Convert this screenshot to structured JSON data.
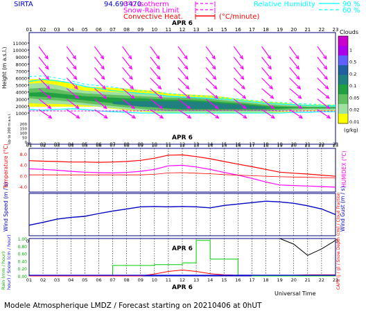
{
  "header": {
    "site": "SIRTA",
    "code": "94.693470",
    "legend_left": [
      {
        "label": "0°C isotherm",
        "color": "#ff00ff"
      },
      {
        "label": "Snow-Rain Limit",
        "color": "#ff00ff"
      },
      {
        "label": "Convective Heat.",
        "color": "#ff0000"
      }
    ],
    "heat_unit": "(°C/minute)",
    "legend_right": {
      "label": "Relative Humidity",
      "v1": "90 %",
      "v2": "60 %",
      "color": "#00ffff"
    }
  },
  "hours": [
    "01",
    "02",
    "03",
    "04",
    "05",
    "06",
    "07",
    "08",
    "09",
    "10",
    "11",
    "12",
    "13",
    "14",
    "15",
    "16",
    "17",
    "18",
    "19",
    "20",
    "21",
    "22",
    "23"
  ],
  "date_label": "APR  6",
  "colors": {
    "temp": "#ff0000",
    "humidex": "#ff00ff",
    "wind": "#0000c0",
    "rain": "#00cc00",
    "capc": "#ff0000",
    "snow": "#0000ff",
    "navy": "#000080",
    "grid": "#000080"
  },
  "chart_data": [
    {
      "type": "heatmap",
      "title": "Clouds",
      "ylabel": "Height (m a.s.l.)",
      "y_ticks": [
        "11000",
        "10000",
        "9000",
        "8000",
        "7000",
        "6000",
        "5000",
        "4000",
        "3000",
        "2000",
        "1000",
        "200",
        "150",
        "100",
        "50",
        "0"
      ],
      "sub_label": "Up to 200 m a.s.l.",
      "colorbar": {
        "unit": "(g/kg)",
        "labels": [
          "1",
          "0.5",
          "0.2",
          "0.1",
          "0.05",
          "0.02",
          "0.01"
        ],
        "colors": [
          "#cc00cc",
          "#aa00ee",
          "#6060ff",
          "#2060a0",
          "#208080",
          "#20a040",
          "#60c060",
          "#a0e0a0",
          "#ffff00"
        ]
      },
      "cloud_layers": [
        {
          "color": "#ffff00",
          "top": [
            5800,
            5900,
            5700,
            5200,
            4700,
            4700,
            4600,
            4500,
            4300,
            4200,
            3800,
            3700,
            3600,
            3500,
            3300,
            3000,
            2800,
            2600,
            2500,
            2300,
            2200,
            2200,
            2200
          ],
          "bottom": [
            1900,
            1900,
            1900,
            1900,
            1900,
            1900,
            1600,
            1400,
            1200,
            1100,
            1000,
            1000,
            1000,
            1000,
            1000,
            1000,
            1000,
            1000,
            1100,
            1200,
            1300,
            1300,
            1300
          ]
        },
        {
          "color": "#a0e0a0",
          "top": [
            5200,
            5300,
            5000,
            4500,
            4200,
            4100,
            4000,
            3900,
            3800,
            3700,
            3500,
            3400,
            3300,
            3200,
            3000,
            2800,
            2600,
            2400,
            2300,
            2200,
            2100,
            2100,
            2100
          ],
          "bottom": [
            2400,
            2300,
            2300,
            2200,
            2100,
            1900,
            1700,
            1500,
            1300,
            1200,
            1100,
            1100,
            1100,
            1100,
            1100,
            1100,
            1100,
            1100,
            1200,
            1300,
            1400,
            1400,
            1400
          ]
        },
        {
          "color": "#60c060",
          "top": [
            4500,
            4600,
            4400,
            4000,
            3800,
            3700,
            3600,
            3500,
            3400,
            3300,
            3200,
            3200,
            3100,
            3000,
            2800,
            2600,
            2400,
            2200,
            2100,
            2000,
            1900,
            1900,
            1900
          ],
          "bottom": [
            3100,
            2900,
            2800,
            2600,
            2400,
            2200,
            2000,
            1800,
            1600,
            1400,
            1300,
            1300,
            1300,
            1300,
            1300,
            1300,
            1300,
            1300,
            1400,
            1500,
            1600,
            1600,
            1600
          ]
        },
        {
          "color": "#20a040",
          "top": [
            3900,
            4000,
            3800,
            3600,
            3400,
            3300,
            3200,
            3100,
            3100,
            3000,
            2900,
            2900,
            2800,
            2700,
            2500,
            2400,
            2200,
            2000,
            1900,
            1850,
            1800,
            1800,
            1800
          ],
          "bottom": [
            3400,
            3300,
            3200,
            3000,
            2800,
            2600,
            2400,
            2200,
            2000,
            1800,
            1600,
            1500,
            1500,
            1500,
            1500,
            1500,
            1500,
            1500,
            1600,
            1700,
            1700,
            1700,
            1700
          ]
        },
        {
          "color": "#208080",
          "top": [
            0,
            0,
            0,
            0,
            0,
            0,
            2600,
            2700,
            2700,
            2700,
            2700,
            2700,
            2600,
            2500,
            2300,
            2200,
            2000,
            1900,
            0,
            0,
            0,
            0,
            0
          ],
          "bottom": [
            0,
            0,
            0,
            0,
            0,
            0,
            2300,
            2100,
            1900,
            1800,
            1700,
            1600,
            1600,
            1600,
            1600,
            1600,
            1600,
            1650,
            0,
            0,
            0,
            0,
            0
          ]
        }
      ],
      "rh90_top": [
        5500,
        5800,
        5600,
        5300,
        4800,
        4500,
        4200,
        4000,
        3800,
        3700,
        3400,
        3300,
        3200,
        3100,
        3000,
        2800,
        2600,
        2400,
        2300,
        2200,
        2100,
        2000,
        2000
      ],
      "rh90_bottom": [
        1500,
        1400,
        1500,
        1600,
        1500,
        1300,
        1200,
        1100,
        1000,
        1000,
        1000,
        1000,
        1000,
        1000,
        1000,
        1000,
        1000,
        1000,
        1000,
        1100,
        1100,
        1200,
        1200
      ],
      "rh60_top": [
        6200,
        6300,
        6000,
        5600,
        5100,
        4900,
        4700,
        4400,
        4200,
        4000,
        3800,
        3600,
        3500,
        3400,
        3200,
        3000,
        2800,
        2600,
        2500,
        2400,
        2300,
        2200,
        2100
      ],
      "freezing_level": [
        1300,
        1300,
        1300,
        1300,
        1300,
        1300,
        1300,
        1300,
        1300,
        1400,
        1400,
        1400,
        1400,
        1400,
        1400,
        1400,
        1400,
        1400,
        1300,
        1300,
        1300,
        1300,
        1300
      ],
      "wind_arrows": {
        "heights": [
          10500,
          9000,
          7500,
          6000,
          4500,
          3000,
          1500
        ],
        "direction_deg": [
          -36,
          -38,
          -40,
          -45,
          -50,
          -52,
          -56
        ],
        "color": "#ff00ff"
      }
    },
    {
      "type": "line",
      "ylabel": "Temperature (°C)",
      "y2label": "HUMIDEX (°C)",
      "y_ticks": [
        "8.0",
        "4.0",
        "0.0",
        "-4.0"
      ],
      "ylim": [
        -6,
        10
      ],
      "series": [
        {
          "key": "temperature",
          "values": [
            5.5,
            5.3,
            5.2,
            5.0,
            5.0,
            4.9,
            5.0,
            5.2,
            5.6,
            6.4,
            7.5,
            7.6,
            7.0,
            6.2,
            5.2,
            4.2,
            3.3,
            2.3,
            1.3,
            0.9,
            0.6,
            0.2,
            -0.2
          ]
        },
        {
          "key": "humidex",
          "values": [
            2.5,
            2.3,
            2.0,
            1.6,
            1.3,
            1.1,
            1.0,
            1.2,
            1.6,
            2.3,
            3.6,
            3.8,
            3.2,
            2.3,
            1.2,
            0.2,
            -1.0,
            -2.3,
            -3.4,
            -3.6,
            -3.8,
            -4.0,
            -4.2
          ]
        },
        {
          "key": "dewpoint",
          "values": [
            0.3,
            0.3,
            0.3,
            0.3,
            0.3,
            0.3,
            0.3,
            0.3,
            0.3,
            0.5,
            1.0,
            1.1,
            0.9,
            0.7,
            0.4,
            0.2,
            0.0,
            -0.2,
            -0.4,
            -0.5,
            -0.6,
            -0.7,
            -0.8
          ]
        }
      ]
    },
    {
      "type": "line",
      "ylabel": "Wind Speed (m / s)",
      "y2label": "Wind Gust (m / s)",
      "series": [
        {
          "key": "wind",
          "values": [
            3.0,
            3.8,
            4.7,
            5.2,
            5.5,
            6.3,
            7.0,
            7.6,
            8.2,
            8.3,
            8.2,
            8.3,
            8.2,
            7.9,
            8.6,
            9.0,
            9.4,
            9.8,
            9.6,
            9.2,
            8.5,
            7.6,
            6.0
          ]
        }
      ],
      "ylim": [
        0,
        12
      ]
    },
    {
      "type": "line",
      "ylabel": "Rain (mm / hour) / Snow (cm / hour)",
      "y2label": "CAPE (J / g) / Snow Depth (cm) / Cloud Fraction",
      "y_ticks": [
        "1.00",
        "0.80",
        "0.60",
        "0.40",
        "0.20",
        "0.00"
      ],
      "ylim": [
        0,
        1.0
      ],
      "series": [
        {
          "key": "rain",
          "step": true,
          "values": [
            0,
            0,
            0,
            0,
            0,
            0.02,
            0.28,
            0.28,
            0.28,
            0.3,
            0.3,
            0.35,
            0.95,
            0.45,
            0.45,
            0.02,
            0,
            0,
            0,
            0,
            0,
            0,
            0
          ]
        },
        {
          "key": "capc",
          "values": [
            0,
            0,
            0,
            0,
            0,
            0,
            0,
            0,
            0,
            0.05,
            0.12,
            0.16,
            0.12,
            0.06,
            0.03,
            0.02,
            0.02,
            0.02,
            0.02,
            0.02,
            0.03,
            0.03,
            0.03
          ]
        },
        {
          "key": "cloud_fraction",
          "values": [
            null,
            null,
            null,
            null,
            null,
            null,
            null,
            null,
            null,
            null,
            null,
            null,
            null,
            null,
            null,
            null,
            null,
            null,
            1.0,
            0.85,
            0.55,
            0.72,
            0.95
          ]
        }
      ]
    }
  ],
  "footer": {
    "xlabel": "Universal Time",
    "model_info": "Modele Atmospherique LMDZ / Forecast starting on 20210406 at 0hUT"
  }
}
